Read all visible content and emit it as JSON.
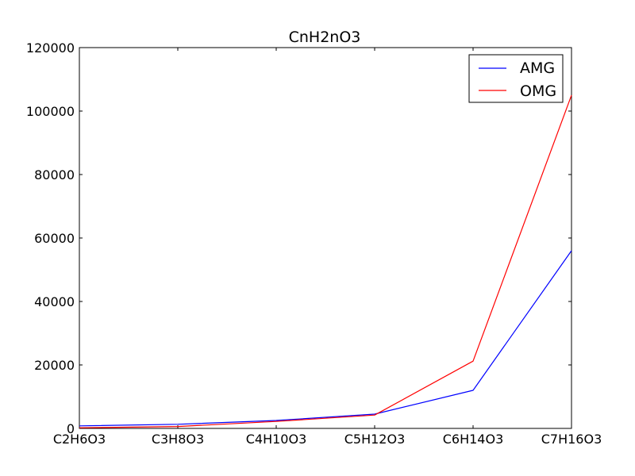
{
  "chart_data": {
    "type": "line",
    "title": "CnH2nO3",
    "xlabel": "",
    "ylabel": "",
    "categories": [
      "C2H6O3",
      "C3H8O3",
      "C4H10O3",
      "C5H12O3",
      "C6H14O3",
      "C7H16O3"
    ],
    "ylim": [
      0,
      120000
    ],
    "yticks": [
      0,
      20000,
      40000,
      60000,
      80000,
      100000,
      120000
    ],
    "ytick_labels": [
      "0",
      "20000",
      "40000",
      "60000",
      "80000",
      "100000",
      "120000"
    ],
    "grid": false,
    "legend_position": "top-right",
    "series": [
      {
        "name": "AMG",
        "color": "#0000ff",
        "values": [
          800,
          1300,
          2500,
          4500,
          12000,
          56000
        ]
      },
      {
        "name": "OMG",
        "color": "#ff0000",
        "values": [
          200,
          600,
          2200,
          4200,
          21200,
          105000
        ]
      }
    ]
  }
}
